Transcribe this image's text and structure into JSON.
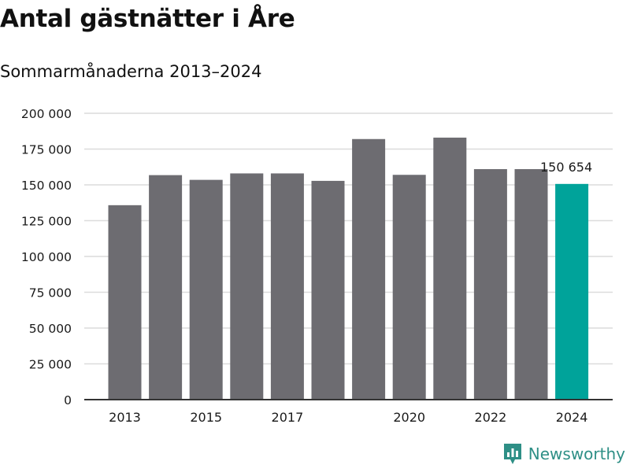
{
  "title": "Antal gästnätter i Åre",
  "subtitle": "Sommarmånaderna 2013–2024",
  "brand": {
    "name": "Newsworthy",
    "color": "#2e8f86",
    "icon": "newsworthy-bar-chart-logo-icon"
  },
  "colors": {
    "bar": "#6d6c71",
    "highlight": "#00a39a",
    "grid": "#dcdcdc",
    "axis": "#333333",
    "text": "#1a1a1a"
  },
  "chart_data": {
    "type": "bar",
    "categories": [
      "2013",
      "2014",
      "2015",
      "2016",
      "2017",
      "2018",
      "2019",
      "2020",
      "2021",
      "2022",
      "2023",
      "2024"
    ],
    "values": [
      135800,
      156800,
      153500,
      158000,
      158000,
      152800,
      182000,
      157000,
      183000,
      161000,
      161000,
      150654
    ],
    "highlight_index": 11,
    "data_label": {
      "index": 11,
      "text": "150 654"
    },
    "x_tick_labels": [
      "2013",
      "2015",
      "2017",
      "2020",
      "2022",
      "2024"
    ],
    "y_ticks": [
      0,
      25000,
      50000,
      75000,
      100000,
      125000,
      150000,
      175000,
      200000
    ],
    "y_tick_labels": [
      "0",
      "25 000",
      "50 000",
      "75 000",
      "100 000",
      "125 000",
      "150 000",
      "175 000",
      "200 000"
    ],
    "ylim": [
      0,
      200000
    ],
    "grid": true,
    "xlabel": "",
    "ylabel": ""
  }
}
